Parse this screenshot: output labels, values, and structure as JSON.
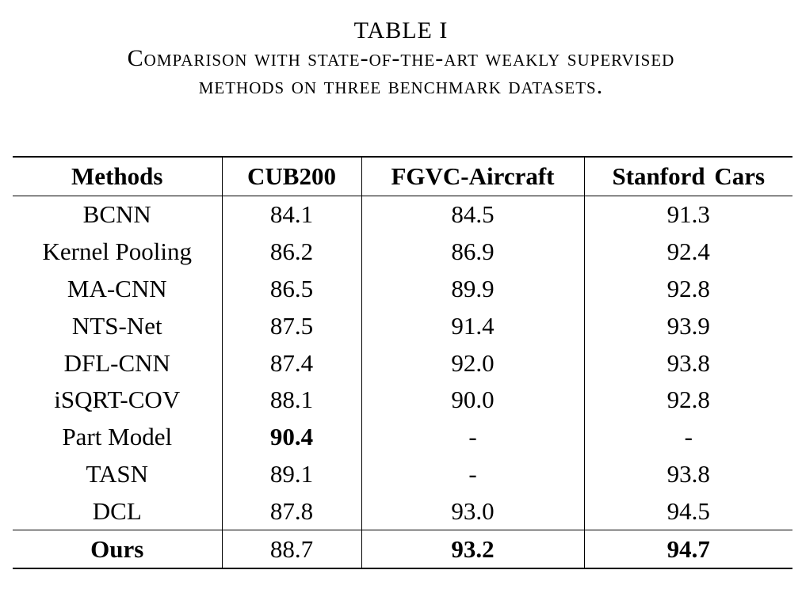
{
  "caption": {
    "label": "TABLE I",
    "line1": "Comparison with state-of-the-art weakly supervised",
    "line2": "methods on three benchmark datasets."
  },
  "table": {
    "headers": [
      "Methods",
      "CUB200",
      "FGVC-Aircraft",
      "Stanford Cars"
    ],
    "rows": [
      [
        "BCNN",
        "84.1",
        "84.5",
        "91.3"
      ],
      [
        "Kernel Pooling",
        "86.2",
        "86.9",
        "92.4"
      ],
      [
        "MA-CNN",
        "86.5",
        "89.9",
        "92.8"
      ],
      [
        "NTS-Net",
        "87.5",
        "91.4",
        "93.9"
      ],
      [
        "DFL-CNN",
        "87.4",
        "92.0",
        "93.8"
      ],
      [
        "iSQRT-COV",
        "88.1",
        "90.0",
        "92.8"
      ],
      [
        "Part Model",
        "90.4",
        "-",
        "-"
      ],
      [
        "TASN",
        "89.1",
        "-",
        "93.8"
      ],
      [
        "DCL",
        "87.8",
        "93.0",
        "94.5"
      ],
      [
        "Ours",
        "88.7",
        "93.2",
        "94.7"
      ]
    ],
    "bold_cells": [
      "6.1",
      "9.0",
      "9.2",
      "9.3"
    ]
  }
}
